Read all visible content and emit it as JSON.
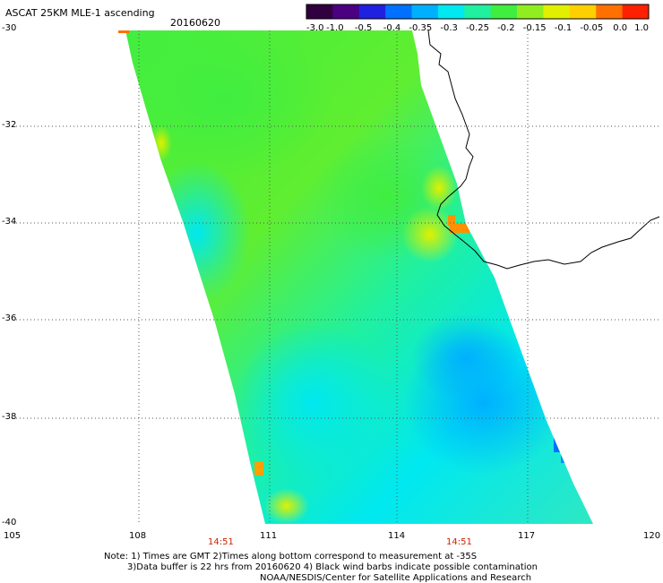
{
  "header": {
    "title": "ASCAT 25KM MLE-1 ascending",
    "date": "20160620"
  },
  "colorbar": {
    "tick_labels": [
      "-3.0",
      "-1.0",
      "-0.5",
      "-0.4",
      "-0.35",
      "-0.3",
      "-0.25",
      "-0.2",
      "-0.15",
      "-0.1",
      "-0.05",
      "0.0",
      "1.0"
    ],
    "colors": [
      "#300040",
      "#4b0082",
      "#2020e0",
      "#0070ff",
      "#00b0ff",
      "#00e8f0",
      "#20f0a0",
      "#40ee40",
      "#90ee20",
      "#e0f000",
      "#ffd000",
      "#ff7000",
      "#ff2000"
    ]
  },
  "axes": {
    "lat_labels": [
      "-30",
      "-32",
      "-34",
      "-36",
      "-38",
      "-40"
    ],
    "lon_labels": [
      "105",
      "108",
      "111",
      "114",
      "117",
      "120"
    ],
    "time_labels": [
      "14:51",
      "14:51"
    ]
  },
  "notes": {
    "line1": "Note: 1) Times are GMT 2)Times along bottom correspond to measurement at -35S",
    "line2": "3)Data buffer is 22 hrs from 20160620 4) Black wind barbs indicate possible contamination",
    "line3": "NOAA/NESDIS/Center for Satellite Applications and Research"
  }
}
